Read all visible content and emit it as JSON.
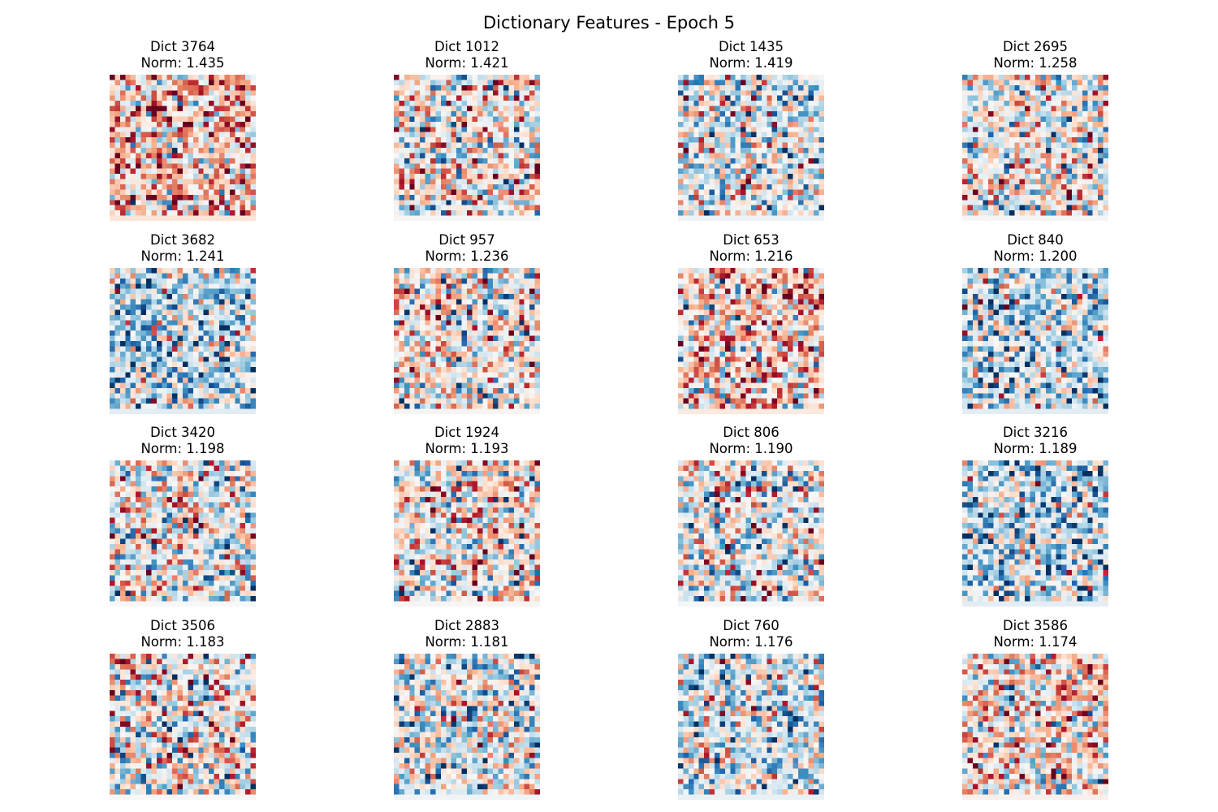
{
  "figure": {
    "title": "Dictionary Features - Epoch 5"
  },
  "colormap": {
    "name": "RdBu_r",
    "low": "#2166ac",
    "mid": "#f7f7f7",
    "high": "#b2182b"
  },
  "chart_data": {
    "type": "heatmap",
    "grid": {
      "rows": 4,
      "cols": 4
    },
    "axes": "off",
    "panels": [
      {
        "dict": 3764,
        "title": "Dict 3764",
        "norm_label": "Norm: 1.435",
        "norm": 1.435,
        "bias": 0.55
      },
      {
        "dict": 1012,
        "title": "Dict 1012",
        "norm_label": "Norm: 1.421",
        "norm": 1.421,
        "bias": 0.05
      },
      {
        "dict": 1435,
        "title": "Dict 1435",
        "norm_label": "Norm: 1.419",
        "norm": 1.419,
        "bias": -0.2
      },
      {
        "dict": 2695,
        "title": "Dict 2695",
        "norm_label": "Norm: 1.258",
        "norm": 1.258,
        "bias": -0.05
      },
      {
        "dict": 3682,
        "title": "Dict 3682",
        "norm_label": "Norm: 1.241",
        "norm": 1.241,
        "bias": -0.45
      },
      {
        "dict": 957,
        "title": "Dict 957",
        "norm_label": "Norm: 1.236",
        "norm": 1.236,
        "bias": 0.05
      },
      {
        "dict": 653,
        "title": "Dict 653",
        "norm_label": "Norm: 1.216",
        "norm": 1.216,
        "bias": 0.4
      },
      {
        "dict": 840,
        "title": "Dict 840",
        "norm_label": "Norm: 1.200",
        "norm": 1.2,
        "bias": -0.45
      },
      {
        "dict": 3420,
        "title": "Dict 3420",
        "norm_label": "Norm: 1.198",
        "norm": 1.198,
        "bias": 0.0
      },
      {
        "dict": 1924,
        "title": "Dict 1924",
        "norm_label": "Norm: 1.193",
        "norm": 1.193,
        "bias": 0.05
      },
      {
        "dict": 806,
        "title": "Dict 806",
        "norm_label": "Norm: 1.190",
        "norm": 1.19,
        "bias": -0.05
      },
      {
        "dict": 3216,
        "title": "Dict 3216",
        "norm_label": "Norm: 1.189",
        "norm": 1.189,
        "bias": -0.45
      },
      {
        "dict": 3506,
        "title": "Dict 3506",
        "norm_label": "Norm: 1.183",
        "norm": 1.183,
        "bias": 0.0
      },
      {
        "dict": 2883,
        "title": "Dict 2883",
        "norm_label": "Norm: 1.181",
        "norm": 1.181,
        "bias": -0.15
      },
      {
        "dict": 760,
        "title": "Dict 760",
        "norm_label": "Norm: 1.176",
        "norm": 1.176,
        "bias": -0.3
      },
      {
        "dict": 3586,
        "title": "Dict 3586",
        "norm_label": "Norm: 1.174",
        "norm": 1.174,
        "bias": 0.2
      }
    ]
  }
}
